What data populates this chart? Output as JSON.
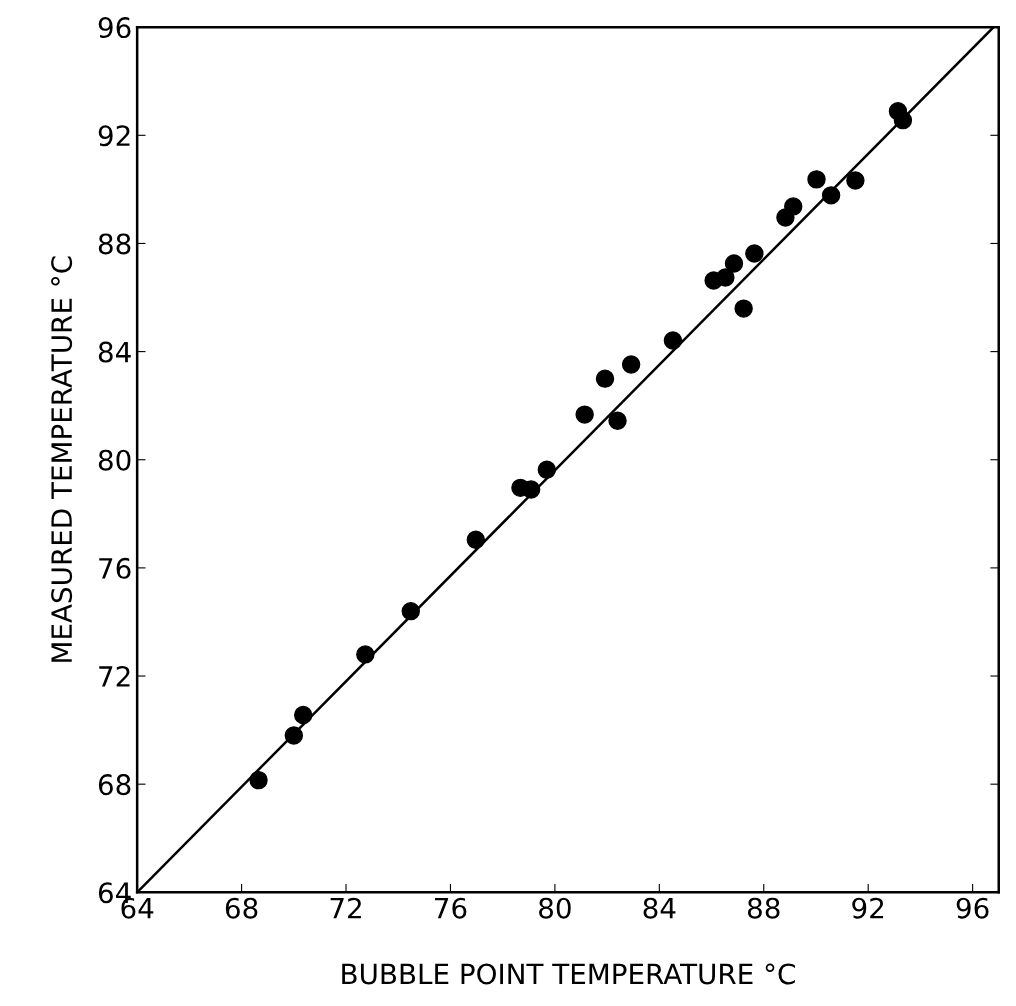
{
  "chart_data": {
    "type": "scatter",
    "xlabel": "BUBBLE POINT TEMPERATURE °C",
    "ylabel": "MEASURED TEMPERATURE °C",
    "xlim": [
      64,
      97
    ],
    "ylim": [
      64,
      96
    ],
    "xticks": [
      64,
      68,
      72,
      76,
      80,
      84,
      88,
      92,
      96
    ],
    "yticks": [
      64,
      68,
      72,
      76,
      80,
      84,
      88,
      92,
      96
    ],
    "grid": false,
    "legend": false,
    "marker": "circle",
    "series": [
      {
        "color": "#000000",
        "x": [
          68.65,
          70.0,
          70.36,
          72.74,
          74.48,
          76.97,
          78.68,
          79.09,
          79.69,
          81.14,
          81.92,
          82.4,
          82.92,
          84.52,
          86.08,
          86.53,
          86.86,
          87.23,
          87.64,
          88.83,
          89.13,
          90.02,
          90.58,
          91.51,
          93.14,
          93.33
        ],
        "values": [
          68.15,
          69.8,
          70.56,
          72.8,
          74.4,
          77.04,
          78.96,
          78.9,
          79.63,
          81.67,
          83.0,
          81.44,
          83.52,
          84.41,
          86.63,
          86.74,
          87.26,
          85.59,
          87.63,
          88.96,
          89.37,
          90.37,
          89.78,
          90.33,
          92.89,
          92.56
        ]
      },
      {
        "type": "line",
        "color": "#000000",
        "line_style": "solid",
        "marker": "none",
        "x": [
          64,
          96.8
        ],
        "values": [
          64,
          96
        ]
      }
    ]
  }
}
